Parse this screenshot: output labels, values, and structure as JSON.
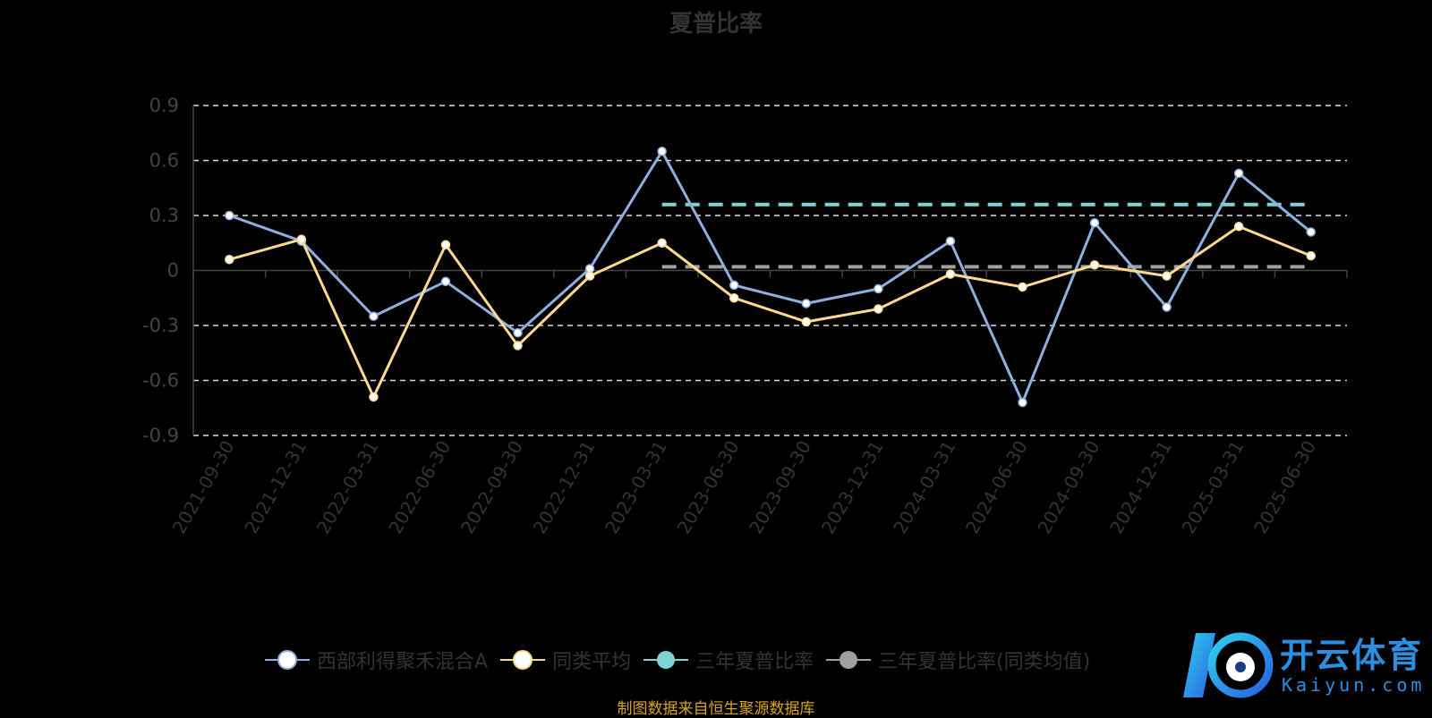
{
  "chart_data": {
    "type": "line",
    "title": "夏普比率",
    "categories": [
      "2021-09-30",
      "2021-12-31",
      "2022-03-31",
      "2022-06-30",
      "2022-09-30",
      "2022-12-31",
      "2023-03-31",
      "2023-06-30",
      "2023-09-30",
      "2023-12-31",
      "2024-03-31",
      "2024-06-30",
      "2024-09-30",
      "2024-12-31",
      "2025-03-31",
      "2025-06-30"
    ],
    "ylim": [
      -0.9,
      0.9
    ],
    "yticks": [
      "0.9",
      "0.6",
      "0.3",
      "0",
      "-0.3",
      "-0.6",
      "-0.9"
    ],
    "grid": true,
    "legend_position": "bottom",
    "series": [
      {
        "name": "西部利得聚禾混合A",
        "color": "#8eb0e0",
        "values": [
          0.3,
          0.16,
          -0.25,
          -0.06,
          -0.34,
          0.01,
          0.65,
          -0.08,
          -0.18,
          -0.1,
          0.16,
          -0.72,
          0.26,
          -0.2,
          0.53,
          0.21
        ]
      },
      {
        "name": "同类平均",
        "color": "#fdd98f",
        "values": [
          0.06,
          0.17,
          -0.69,
          0.14,
          -0.41,
          -0.03,
          0.15,
          -0.15,
          -0.28,
          -0.21,
          -0.02,
          -0.09,
          0.03,
          -0.03,
          0.24,
          0.08
        ]
      },
      {
        "name": "三年夏普比率",
        "color": "#7fd3d6",
        "dashed": true,
        "start": "2023-03-31",
        "end": "2025-06-30",
        "value": 0.36
      },
      {
        "name": "三年夏普比率(同类均值)",
        "color": "#a0a0a0",
        "dashed": true,
        "start": "2023-03-31",
        "end": "2025-06-30",
        "value": 0.02
      }
    ]
  },
  "footer": "制图数据来自恒生聚源数据库",
  "watermark": {
    "text": "开云体育",
    "sub": "Kaiyun.com"
  }
}
